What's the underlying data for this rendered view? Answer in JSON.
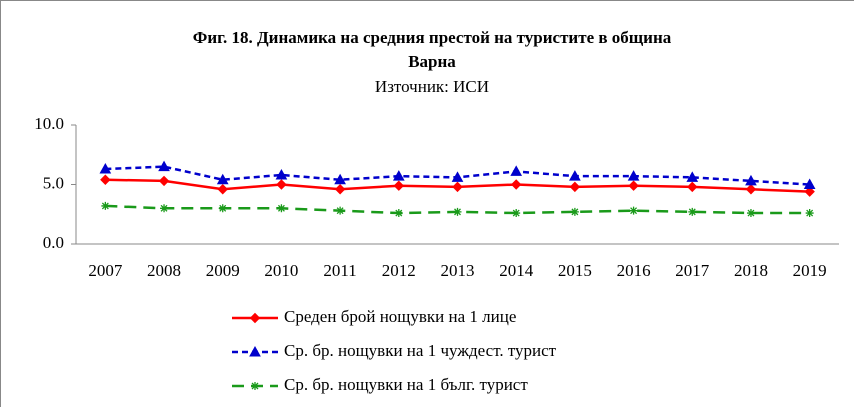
{
  "chart_data": {
    "type": "line",
    "title": "Фиг. 18. Динамика на средния престой на туристите в община",
    "title_line2": "Варна",
    "subtitle": "Източник: ИСИ",
    "categories": [
      "2007",
      "2008",
      "2009",
      "2010",
      "2011",
      "2012",
      "2013",
      "2014",
      "2015",
      "2016",
      "2017",
      "2018",
      "2019"
    ],
    "series": [
      {
        "name": "Среден брой нощувки на 1 лице",
        "color": "#ff0000",
        "dash": "solid",
        "marker": "diamond",
        "values": [
          5.4,
          5.3,
          4.6,
          5.0,
          4.6,
          4.9,
          4.8,
          5.0,
          4.8,
          4.9,
          4.8,
          4.6,
          4.4
        ]
      },
      {
        "name": "Ср. бр. нощувки на 1 чуждест. турист",
        "color": "#0000cc",
        "dash": "short",
        "marker": "triangle",
        "values": [
          6.3,
          6.5,
          5.4,
          5.8,
          5.4,
          5.7,
          5.6,
          6.1,
          5.7,
          5.7,
          5.6,
          5.3,
          5.0
        ]
      },
      {
        "name": "Ср. бр. нощувки на 1 бълг. турист",
        "color": "#1a9a1a",
        "dash": "long",
        "marker": "asterisk",
        "values": [
          3.2,
          3.0,
          3.0,
          3.0,
          2.8,
          2.6,
          2.7,
          2.6,
          2.7,
          2.8,
          2.7,
          2.6,
          2.6
        ]
      }
    ],
    "ylim": [
      0,
      10
    ],
    "yticks": [
      {
        "value": 0,
        "label": "0.0"
      },
      {
        "value": 5,
        "label": "5.0"
      },
      {
        "value": 10,
        "label": "10.0"
      }
    ],
    "grid": false,
    "legend": "bottom"
  }
}
